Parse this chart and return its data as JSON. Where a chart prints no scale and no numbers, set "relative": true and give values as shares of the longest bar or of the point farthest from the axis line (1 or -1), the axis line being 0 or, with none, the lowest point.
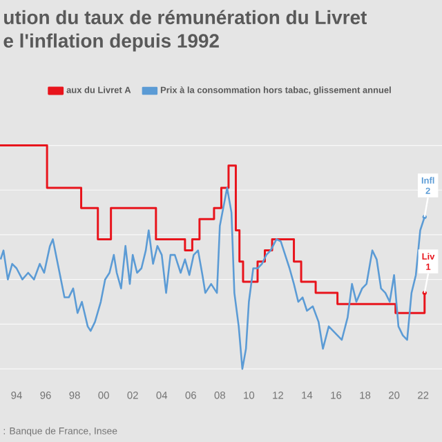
{
  "chart_data": {
    "type": "line",
    "title": "ution du taux de rémunération du Livret",
    "subtitle": "e l'inflation depuis 1992",
    "relative": true,
    "grid": "y",
    "legend": "top",
    "xlim": [
      1992.86,
      2023.3
    ],
    "xticks": [
      {
        "value": 1994,
        "label": "94"
      },
      {
        "value": 1996,
        "label": "96"
      },
      {
        "value": 1998,
        "label": "98"
      },
      {
        "value": 2000,
        "label": "00"
      },
      {
        "value": 2002,
        "label": "02"
      },
      {
        "value": 2004,
        "label": "04"
      },
      {
        "value": 2006,
        "label": "06"
      },
      {
        "value": 2008,
        "label": "08"
      },
      {
        "value": 2010,
        "label": "10"
      },
      {
        "value": 2012,
        "label": "12"
      },
      {
        "value": 2014,
        "label": "14"
      },
      {
        "value": 2016,
        "label": "16"
      },
      {
        "value": 2018,
        "label": "18"
      },
      {
        "value": 2020,
        "label": "20"
      },
      {
        "value": 2022,
        "label": "22"
      }
    ],
    "series": [
      {
        "name": "aux du Livret A",
        "type": "step",
        "color": "#e8141c",
        "x": [
          1992.86,
          1996.1,
          1998.45,
          1999.6,
          2000.5,
          2003.6,
          2005.6,
          2006.1,
          2006.6,
          2007.6,
          2008.1,
          2008.6,
          2009.1,
          2009.35,
          2009.6,
          2010.6,
          2011.1,
          2011.6,
          2013.1,
          2013.6,
          2014.6,
          2016.1,
          2020.1,
          2022.1
        ],
        "values": [
          1,
          0.81,
          0.72,
          0.58,
          0.72,
          0.58,
          0.53,
          0.58,
          0.67,
          0.72,
          0.81,
          0.91,
          0.62,
          0.48,
          0.39,
          0.48,
          0.53,
          0.58,
          0.48,
          0.39,
          0.34,
          0.29,
          0.25,
          0.34
        ]
      },
      {
        "name": "Prix à la consommation hors tabac, glissement annuel",
        "color": "#5b9bd5",
        "x": [
          1992.9,
          1993.1,
          1993.4,
          1993.7,
          1994.0,
          1994.4,
          1994.8,
          1995.2,
          1995.6,
          1995.9,
          1996.3,
          1996.5,
          1996.9,
          1997.3,
          1997.6,
          1997.9,
          1998.2,
          1998.5,
          1998.9,
          1999.1,
          1999.4,
          1999.8,
          2000.1,
          2000.4,
          2000.7,
          2000.9,
          2001.2,
          2001.5,
          2001.8,
          2002.0,
          2002.3,
          2002.6,
          2002.9,
          2003.1,
          2003.4,
          2003.7,
          2004.0,
          2004.3,
          2004.6,
          2004.9,
          2005.3,
          2005.6,
          2005.9,
          2006.2,
          2006.5,
          2006.8,
          2007.0,
          2007.4,
          2007.8,
          2008.0,
          2008.5,
          2008.8,
          2009.0,
          2009.3,
          2009.55,
          2009.8,
          2010.0,
          2010.3,
          2010.6,
          2010.9,
          2011.2,
          2011.5,
          2011.9,
          2012.2,
          2012.5,
          2012.8,
          2013.1,
          2013.4,
          2013.7,
          2014.0,
          2014.4,
          2014.8,
          2015.1,
          2015.5,
          2015.8,
          2016.1,
          2016.4,
          2016.8,
          2017.1,
          2017.4,
          2017.8,
          2018.1,
          2018.5,
          2018.8,
          2019.1,
          2019.4,
          2019.7,
          2020.0,
          2020.3,
          2020.6,
          2020.9,
          2021.2,
          2021.5,
          2021.8,
          2022.1
        ],
        "values": [
          0.49,
          0.53,
          0.4,
          0.47,
          0.45,
          0.4,
          0.43,
          0.4,
          0.47,
          0.43,
          0.55,
          0.58,
          0.45,
          0.32,
          0.32,
          0.36,
          0.25,
          0.3,
          0.19,
          0.17,
          0.21,
          0.3,
          0.4,
          0.43,
          0.51,
          0.43,
          0.36,
          0.55,
          0.38,
          0.51,
          0.43,
          0.45,
          0.53,
          0.62,
          0.47,
          0.55,
          0.51,
          0.34,
          0.51,
          0.51,
          0.43,
          0.49,
          0.42,
          0.51,
          0.53,
          0.42,
          0.34,
          0.38,
          0.34,
          0.64,
          0.81,
          0.7,
          0.34,
          0.19,
          0,
          0.09,
          0.3,
          0.45,
          0.45,
          0.47,
          0.51,
          0.53,
          0.58,
          0.57,
          0.51,
          0.45,
          0.38,
          0.3,
          0.32,
          0.26,
          0.28,
          0.21,
          0.09,
          0.19,
          0.17,
          0.15,
          0.13,
          0.23,
          0.38,
          0.3,
          0.36,
          0.38,
          0.53,
          0.49,
          0.36,
          0.34,
          0.3,
          0.42,
          0.19,
          0.15,
          0.13,
          0.34,
          0.42,
          0.62,
          0.68
        ]
      }
    ],
    "annotations": [
      "Infl",
      "2",
      "Liv",
      "1",
      ": Banque de France, Insee"
    ]
  }
}
